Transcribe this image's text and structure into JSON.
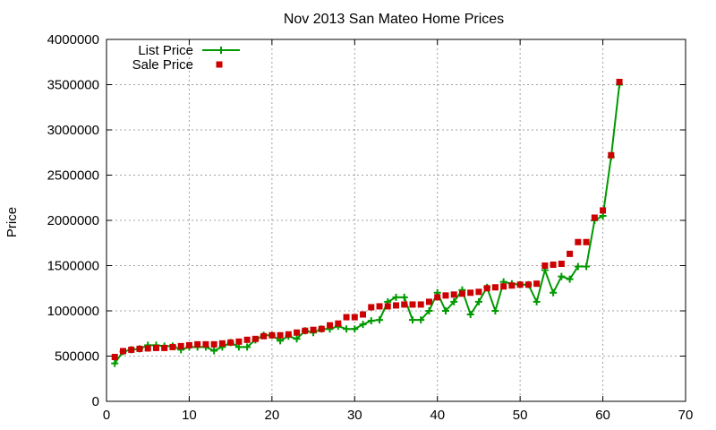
{
  "chart_data": {
    "type": "line",
    "title": "Nov 2013 San Mateo Home Prices",
    "xlabel": "",
    "ylabel": "Price",
    "xlim": [
      0,
      70
    ],
    "ylim": [
      0,
      4000000
    ],
    "xticks": [
      0,
      10,
      20,
      30,
      40,
      50,
      60,
      70
    ],
    "yticks": [
      0,
      500000,
      1000000,
      1500000,
      2000000,
      2500000,
      3000000,
      3500000,
      4000000
    ],
    "grid": true,
    "legend_position": "top-left",
    "x": [
      1,
      2,
      3,
      4,
      5,
      6,
      7,
      8,
      9,
      10,
      11,
      12,
      13,
      14,
      15,
      16,
      17,
      18,
      19,
      20,
      21,
      22,
      23,
      24,
      25,
      26,
      27,
      28,
      29,
      30,
      31,
      32,
      33,
      34,
      35,
      36,
      37,
      38,
      39,
      40,
      41,
      42,
      43,
      44,
      45,
      46,
      47,
      48,
      49,
      50,
      51,
      52,
      53,
      54,
      55,
      56,
      57,
      58,
      59,
      60,
      61,
      62
    ],
    "series": [
      {
        "name": "List Price",
        "style": "linespoints",
        "color": "#009900",
        "marker": "plus",
        "values": [
          420000,
          550000,
          570000,
          580000,
          620000,
          620000,
          610000,
          610000,
          570000,
          600000,
          600000,
          600000,
          560000,
          600000,
          650000,
          600000,
          600000,
          680000,
          730000,
          730000,
          670000,
          720000,
          690000,
          780000,
          760000,
          800000,
          800000,
          830000,
          800000,
          800000,
          850000,
          890000,
          900000,
          1100000,
          1150000,
          1150000,
          900000,
          900000,
          1000000,
          1200000,
          1000000,
          1100000,
          1230000,
          960000,
          1100000,
          1260000,
          1000000,
          1320000,
          1300000,
          1290000,
          1290000,
          1100000,
          1450000,
          1200000,
          1380000,
          1350000,
          1490000,
          1490000,
          2000000,
          2050000,
          2700000,
          3500000
        ]
      },
      {
        "name": "Sale Price",
        "style": "points",
        "color": "#cc0000",
        "marker": "square",
        "values": [
          490000,
          555000,
          570000,
          580000,
          585000,
          590000,
          590000,
          600000,
          610000,
          620000,
          630000,
          630000,
          630000,
          640000,
          650000,
          660000,
          680000,
          690000,
          720000,
          730000,
          730000,
          740000,
          760000,
          780000,
          790000,
          800000,
          840000,
          860000,
          930000,
          930000,
          960000,
          1040000,
          1050000,
          1050000,
          1060000,
          1070000,
          1070000,
          1070000,
          1100000,
          1150000,
          1170000,
          1180000,
          1190000,
          1200000,
          1210000,
          1250000,
          1260000,
          1270000,
          1280000,
          1290000,
          1290000,
          1300000,
          1500000,
          1510000,
          1520000,
          1630000,
          1760000,
          1760000,
          2030000,
          2110000,
          2720000,
          3530000
        ]
      }
    ]
  }
}
